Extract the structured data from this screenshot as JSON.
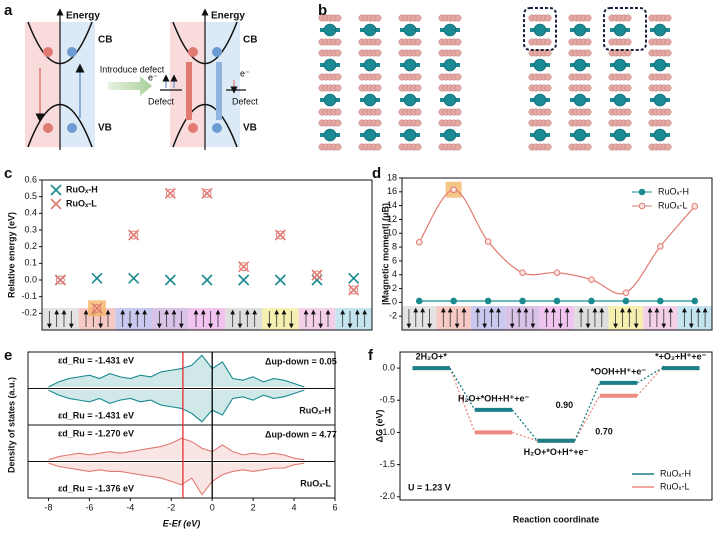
{
  "panel_labels": [
    "a",
    "b",
    "c",
    "d",
    "e",
    "f"
  ],
  "diagram_a": {
    "left": {
      "axis": "Energy",
      "cb": "CB",
      "vb": "VB"
    },
    "arrow": "Introduce defect",
    "right": {
      "axis": "Energy",
      "cb": "CB",
      "vb": "VB",
      "electron_left": "e⁻",
      "defect_left": "Defect",
      "electron_right": "e⁻",
      "defect_right": "Defect"
    }
  },
  "chart_data": [
    {
      "type": "scatter",
      "ylabel": "Relative energy (eV)",
      "categories": [
        null,
        null,
        null,
        null,
        null,
        null,
        null,
        null,
        null
      ],
      "series": [
        {
          "name": "RuOₓ-H",
          "color": "#1a8a8f",
          "values": [
            0.0,
            0.01,
            0.01,
            0.0,
            0.0,
            0.0,
            0.0,
            0.0,
            0.01
          ]
        },
        {
          "name": "RuOₓ-L",
          "color": "#e07b74",
          "values": [
            0.0,
            -0.17,
            0.27,
            0.52,
            0.52,
            0.08,
            0.27,
            0.03,
            -0.06
          ]
        }
      ],
      "ylim": [
        -0.3,
        0.6
      ],
      "yticks": [
        -0.2,
        -0.1,
        {
          "value": 0,
          "label": "0.0"
        },
        0.1,
        0.2,
        0.3,
        0.4,
        0.5,
        0.6
      ],
      "legend": "upper left",
      "highlight_index": 1
    },
    {
      "type": "line",
      "ylabel": "|Magnetic moment| (μB)",
      "categories": [
        null,
        null,
        null,
        null,
        null,
        null,
        null,
        null,
        null
      ],
      "series": [
        {
          "name": "RuOₓ-H",
          "color": "#1a8a8f",
          "values": [
            0.2,
            0.2,
            0.2,
            0.2,
            0.2,
            0.2,
            0.2,
            0.2,
            0.2
          ]
        },
        {
          "name": "RuOₓ-L",
          "color": "#e07b74",
          "values": [
            8.7,
            16.3,
            8.8,
            4.3,
            4.3,
            3.3,
            1.4,
            8.1,
            13.9
          ]
        }
      ],
      "ylim": [
        -4,
        18
      ],
      "yticks": [
        -2,
        0,
        2,
        4,
        6,
        8,
        10,
        12,
        14,
        16,
        18
      ],
      "legend": "upper right",
      "highlight_index": 1
    },
    {
      "type": "dos",
      "xlabel": "E-Ef (eV)",
      "ylabel": "Density of states (a.u.)",
      "x": [
        -8,
        -7.5,
        -7,
        -6.5,
        -6,
        -5.5,
        -5,
        -4.5,
        -4,
        -3.5,
        -3,
        -2.5,
        -2,
        -1.5,
        -1,
        -0.5,
        0,
        0.5,
        1,
        1.5,
        2,
        2.5,
        3,
        3.5,
        4,
        4.5
      ],
      "xlim": [
        -9,
        6
      ],
      "xticks": [
        -8,
        -6,
        -4,
        -2,
        0,
        2,
        4,
        6
      ],
      "subplots": [
        {
          "name": "RuOₓ-H",
          "color": "#1a8a8f",
          "ylim": [
            -1.1,
            1.1
          ],
          "up": [
            0.05,
            0.2,
            0.3,
            0.35,
            0.4,
            0.3,
            0.45,
            0.35,
            0.3,
            0.4,
            0.35,
            0.5,
            0.55,
            0.6,
            0.7,
            1.0,
            0.6,
            0.8,
            0.3,
            0.25,
            0.35,
            0.2,
            0.3,
            0.25,
            0.15,
            0.05
          ],
          "down": [
            -0.05,
            -0.2,
            -0.3,
            -0.35,
            -0.4,
            -0.3,
            -0.45,
            -0.35,
            -0.3,
            -0.4,
            -0.35,
            -0.5,
            -0.55,
            -0.6,
            -0.75,
            -1.0,
            -0.65,
            -0.8,
            -0.3,
            -0.25,
            -0.35,
            -0.2,
            -0.3,
            -0.25,
            -0.15,
            -0.05
          ],
          "eps_up": "εd_Ru = -1.431 eV",
          "eps_down": "εd_Ru = -1.431 eV",
          "delta": "Δup-down = 0.05"
        },
        {
          "name": "RuOₓ-L",
          "color": "#e07b74",
          "ylim": [
            -1.1,
            1.1
          ],
          "up": [
            0.05,
            0.15,
            0.2,
            0.25,
            0.2,
            0.25,
            0.3,
            0.25,
            0.3,
            0.35,
            0.4,
            0.45,
            0.55,
            0.7,
            0.6,
            0.4,
            0.3,
            0.5,
            0.3,
            0.2,
            0.25,
            0.2,
            0.25,
            0.2,
            0.1,
            0.05
          ],
          "down": [
            -0.05,
            -0.15,
            -0.2,
            -0.25,
            -0.3,
            -0.25,
            -0.3,
            -0.3,
            -0.35,
            -0.4,
            -0.45,
            -0.5,
            -0.6,
            -0.7,
            -0.5,
            -1.0,
            -0.6,
            -0.4,
            -0.3,
            -0.25,
            -0.3,
            -0.25,
            -0.2,
            -0.2,
            -0.1,
            -0.05
          ],
          "eps_up": "εd_Ru = -1.270 eV",
          "eps_down": "εd_Ru = -1.376 eV",
          "delta": "Δup-down = 4.77"
        }
      ],
      "vlines": [
        {
          "x": -1.431,
          "color": "#e03030"
        },
        {
          "x": 0,
          "color": "#000000"
        }
      ]
    },
    {
      "type": "step",
      "xlabel": "Reaction coordinate",
      "ylabel": "ΔG (eV)",
      "categories": [
        "2H₂O+*",
        "H₂O+*OH+H⁺+e⁻",
        "H₂O+*O+H⁺+e⁻",
        "*OOH+H⁺+e⁻",
        "*+O₂+H⁺+e⁻"
      ],
      "series": [
        {
          "name": "RuOₓ-H",
          "color": "#1a7f86",
          "values": [
            0,
            -0.65,
            -1.13,
            -0.23,
            0
          ]
        },
        {
          "name": "RuOₓ-L",
          "color": "#ef8a80",
          "values": [
            0,
            -1.0,
            -1.13,
            -0.43,
            0
          ]
        }
      ],
      "ylim": [
        -2.05,
        0.25
      ],
      "yticks": [
        {
          "value": 0,
          "label": "0.0"
        },
        -0.5,
        {
          "value": -1,
          "label": "-1.0"
        },
        -1.5,
        {
          "value": -2,
          "label": "-2.0"
        }
      ],
      "annotations": [
        {
          "text": "0.90",
          "color": "#1a7f86"
        },
        {
          "text": "0.70",
          "color": "#ef8a80"
        },
        {
          "text": "U = 1.23 V",
          "color": "#111111"
        }
      ],
      "legend": "lower right"
    }
  ]
}
